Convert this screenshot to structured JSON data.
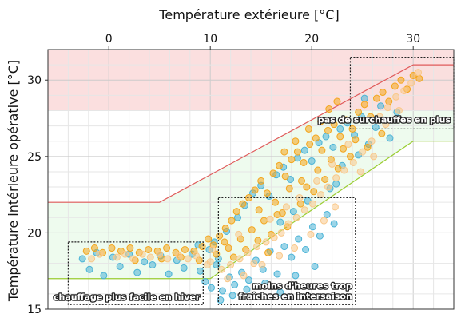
{
  "chart_data": {
    "type": "scatter",
    "title": "",
    "xlabel": "Température extérieure [°C]",
    "ylabel": "Température intérieure opérative [°C]",
    "xlim": [
      -6,
      34
    ],
    "ylim": [
      15,
      32
    ],
    "x_ticks": [
      0,
      10,
      20,
      30
    ],
    "y_ticks": [
      15,
      20,
      25,
      30
    ],
    "x_axis_position": "top",
    "grid": true,
    "legend": "none",
    "colors": {
      "series_new": "#F4A51C",
      "series_old": "#4AB3D6",
      "series_light": "#F9C88A",
      "upper_limit": "#E05A5A",
      "lower_limit": "#9ACD32",
      "overheat_zone": "#FBDCDC",
      "comfort_band": "#EEFBEE"
    },
    "overheat_zone": {
      "y_from": 28,
      "y_to": 32
    },
    "comfort_upper_limit": {
      "x": [
        -6,
        5,
        30,
        34
      ],
      "y": [
        22,
        22,
        31,
        31
      ]
    },
    "comfort_lower_limit": {
      "x": [
        -6,
        10,
        30,
        34
      ],
      "y": [
        17,
        17,
        26,
        26
      ]
    },
    "series": [
      {
        "color_key": "series_old",
        "points": [
          [
            -2.6,
            18.3
          ],
          [
            -1.9,
            17.6
          ],
          [
            -1.2,
            18.7
          ],
          [
            -0.5,
            17.2
          ],
          [
            0.4,
            18.4
          ],
          [
            1.1,
            17.8
          ],
          [
            2.0,
            18.6
          ],
          [
            2.8,
            17.4
          ],
          [
            3.5,
            18.1
          ],
          [
            4.3,
            17.9
          ],
          [
            5.1,
            18.5
          ],
          [
            5.9,
            17.3
          ],
          [
            6.7,
            18.2
          ],
          [
            7.4,
            17.7
          ],
          [
            8.2,
            18.6
          ],
          [
            9.0,
            17.5
          ],
          [
            9.5,
            16.8
          ],
          [
            10.1,
            16.4
          ],
          [
            10.6,
            17.9
          ],
          [
            11.2,
            16.2
          ],
          [
            11.9,
            17.1
          ],
          [
            12.4,
            16.6
          ],
          [
            13.1,
            17.4
          ],
          [
            13.8,
            16.9
          ],
          [
            14.5,
            18.2
          ],
          [
            15.2,
            17.6
          ],
          [
            15.9,
            18.8
          ],
          [
            16.6,
            17.3
          ],
          [
            17.3,
            19.1
          ],
          [
            18.0,
            18.4
          ],
          [
            18.7,
            19.6
          ],
          [
            19.4,
            18.9
          ],
          [
            20.1,
            20.4
          ],
          [
            20.8,
            19.8
          ],
          [
            21.5,
            21.2
          ],
          [
            22.2,
            20.6
          ],
          [
            10.4,
            19.4
          ],
          [
            11.6,
            20.1
          ],
          [
            12.7,
            21.0
          ],
          [
            13.4,
            21.8
          ],
          [
            14.2,
            22.6
          ],
          [
            15.0,
            23.1
          ],
          [
            15.8,
            22.4
          ],
          [
            16.5,
            23.8
          ],
          [
            17.2,
            24.3
          ],
          [
            17.9,
            23.5
          ],
          [
            18.6,
            24.9
          ],
          [
            19.3,
            25.4
          ],
          [
            20.0,
            24.7
          ],
          [
            20.7,
            25.9
          ],
          [
            21.4,
            26.3
          ],
          [
            22.1,
            25.6
          ],
          [
            22.8,
            26.8
          ],
          [
            23.5,
            27.2
          ],
          [
            24.2,
            26.4
          ],
          [
            24.9,
            27.6
          ],
          [
            25.6,
            25.8
          ],
          [
            26.3,
            26.9
          ],
          [
            27.0,
            27.4
          ],
          [
            27.7,
            26.2
          ],
          [
            28.4,
            27.9
          ],
          [
            23.0,
            24.4
          ],
          [
            22.4,
            23.2
          ],
          [
            19.6,
            22.1
          ],
          [
            18.2,
            21.4
          ],
          [
            16.9,
            20.7
          ],
          [
            21.8,
            22.9
          ],
          [
            24.6,
            25.1
          ],
          [
            26.8,
            28.3
          ],
          [
            25.2,
            28.8
          ],
          [
            11.0,
            15.6
          ],
          [
            12.2,
            15.9
          ],
          [
            13.6,
            16.3
          ],
          [
            15.4,
            16.7
          ],
          [
            16.9,
            16.1
          ],
          [
            18.4,
            17.2
          ],
          [
            20.3,
            17.8
          ],
          [
            9.9,
            18.9
          ],
          [
            10.8,
            18.3
          ],
          [
            8.8,
            19.2
          ]
        ]
      },
      {
        "color_key": "series_new",
        "points": [
          [
            -2.2,
            18.8
          ],
          [
            -1.4,
            19.0
          ],
          [
            -0.6,
            18.7
          ],
          [
            0.3,
            19.0
          ],
          [
            1.2,
            18.8
          ],
          [
            2.1,
            19.0
          ],
          [
            3.0,
            18.7
          ],
          [
            3.9,
            18.9
          ],
          [
            4.8,
            18.8
          ],
          [
            5.7,
            19.0
          ],
          [
            6.6,
            18.7
          ],
          [
            7.5,
            18.9
          ],
          [
            8.4,
            18.8
          ],
          [
            9.2,
            19.1
          ],
          [
            9.8,
            19.6
          ],
          [
            10.3,
            19.2
          ],
          [
            10.9,
            19.8
          ],
          [
            11.5,
            20.3
          ],
          [
            12.1,
            20.8
          ],
          [
            12.6,
            21.4
          ],
          [
            13.2,
            21.9
          ],
          [
            13.8,
            22.3
          ],
          [
            14.4,
            22.8
          ],
          [
            15.0,
            23.4
          ],
          [
            15.6,
            22.6
          ],
          [
            16.2,
            23.9
          ],
          [
            16.8,
            24.4
          ],
          [
            17.4,
            23.7
          ],
          [
            18.0,
            24.8
          ],
          [
            18.6,
            25.3
          ],
          [
            19.2,
            24.6
          ],
          [
            19.8,
            25.8
          ],
          [
            20.4,
            26.2
          ],
          [
            21.0,
            25.4
          ],
          [
            21.6,
            26.7
          ],
          [
            22.2,
            27.1
          ],
          [
            22.8,
            26.3
          ],
          [
            23.4,
            27.4
          ],
          [
            24.0,
            26.8
          ],
          [
            24.6,
            27.9
          ],
          [
            25.2,
            28.4
          ],
          [
            25.8,
            27.6
          ],
          [
            26.4,
            28.8
          ],
          [
            27.0,
            29.2
          ],
          [
            27.6,
            28.6
          ],
          [
            28.2,
            29.6
          ],
          [
            28.8,
            30.0
          ],
          [
            29.4,
            29.4
          ],
          [
            30.0,
            30.3
          ],
          [
            30.6,
            30.1
          ],
          [
            14.8,
            21.5
          ],
          [
            16.4,
            22.0
          ],
          [
            17.8,
            22.9
          ],
          [
            19.0,
            23.4
          ],
          [
            20.6,
            24.1
          ],
          [
            21.9,
            24.8
          ],
          [
            23.1,
            25.5
          ],
          [
            24.3,
            26.1
          ],
          [
            17.1,
            21.3
          ],
          [
            18.9,
            21.9
          ],
          [
            20.2,
            22.7
          ],
          [
            21.3,
            23.5
          ],
          [
            22.6,
            24.2
          ],
          [
            11.8,
            19.0
          ],
          [
            13.0,
            19.6
          ],
          [
            14.1,
            20.2
          ],
          [
            15.3,
            20.8
          ],
          [
            16.0,
            19.9
          ],
          [
            17.6,
            20.4
          ],
          [
            12.3,
            18.4
          ],
          [
            13.5,
            18.9
          ],
          [
            14.7,
            19.5
          ],
          [
            15.7,
            18.7
          ],
          [
            10.6,
            18.6
          ],
          [
            11.4,
            19.4
          ],
          [
            20.9,
            27.3
          ],
          [
            21.7,
            28.1
          ],
          [
            22.5,
            28.6
          ],
          [
            19.7,
            26.8
          ],
          [
            18.4,
            26.0
          ],
          [
            17.3,
            25.3
          ],
          [
            23.8,
            25.0
          ],
          [
            25.5,
            25.6
          ],
          [
            26.9,
            26.5
          ],
          [
            19.5,
            23.0
          ],
          [
            16.6,
            21.2
          ],
          [
            8.9,
            18.2
          ],
          [
            7.1,
            18.4
          ],
          [
            5.2,
            18.3
          ],
          [
            2.6,
            18.2
          ]
        ]
      },
      {
        "color_key": "series_light",
        "points": [
          [
            -1.7,
            18.3
          ],
          [
            -0.9,
            18.6
          ],
          [
            0.8,
            18.4
          ],
          [
            1.6,
            18.6
          ],
          [
            2.4,
            18.3
          ],
          [
            3.3,
            18.6
          ],
          [
            4.1,
            18.4
          ],
          [
            5.0,
            18.6
          ],
          [
            5.8,
            18.3
          ],
          [
            6.9,
            18.5
          ],
          [
            7.8,
            18.3
          ],
          [
            8.6,
            18.5
          ],
          [
            10.0,
            18.1
          ],
          [
            11.1,
            17.6
          ],
          [
            12.0,
            17.9
          ],
          [
            12.9,
            18.3
          ],
          [
            13.7,
            18.7
          ],
          [
            14.6,
            19.1
          ],
          [
            15.5,
            19.4
          ],
          [
            16.3,
            19.7
          ],
          [
            17.0,
            20.0
          ],
          [
            17.7,
            20.6
          ],
          [
            18.5,
            21.0
          ],
          [
            19.3,
            21.5
          ],
          [
            20.1,
            21.9
          ],
          [
            20.9,
            22.5
          ],
          [
            21.6,
            23.0
          ],
          [
            22.4,
            23.6
          ],
          [
            23.2,
            24.1
          ],
          [
            24.1,
            24.6
          ],
          [
            25.0,
            25.3
          ],
          [
            25.9,
            26.0
          ],
          [
            26.7,
            27.6
          ],
          [
            27.5,
            28.2
          ],
          [
            28.3,
            28.9
          ],
          [
            29.1,
            29.3
          ],
          [
            29.8,
            29.8
          ],
          [
            30.5,
            30.5
          ],
          [
            28.6,
            28.0
          ],
          [
            27.3,
            27.1
          ],
          [
            13.3,
            17.2
          ],
          [
            15.1,
            17.9
          ],
          [
            16.8,
            18.5
          ],
          [
            18.3,
            19.0
          ],
          [
            19.9,
            19.9
          ],
          [
            21.2,
            20.8
          ],
          [
            22.3,
            21.7
          ],
          [
            11.7,
            17.0
          ],
          [
            14.3,
            18.0
          ],
          [
            9.7,
            17.9
          ],
          [
            18.8,
            22.3
          ],
          [
            20.5,
            23.4
          ],
          [
            22.0,
            24.5
          ],
          [
            23.6,
            25.8
          ],
          [
            24.8,
            24.0
          ],
          [
            26.1,
            25.0
          ],
          [
            15.9,
            20.9
          ],
          [
            17.5,
            21.7
          ],
          [
            12.8,
            19.9
          ],
          [
            10.2,
            18.9
          ]
        ]
      }
    ],
    "annotations": [
      {
        "text": "chauffage plus facile en hiver",
        "box": [
          -4,
          9.3,
          15.3,
          19.4
        ]
      },
      {
        "text": "moins d'heures trop fraîches en intersaison",
        "box": [
          10.8,
          24.3,
          15.3,
          22.3
        ]
      },
      {
        "text": "pas de surchauffes en plus",
        "box": [
          23.8,
          34,
          26.8,
          31.5
        ]
      }
    ]
  }
}
